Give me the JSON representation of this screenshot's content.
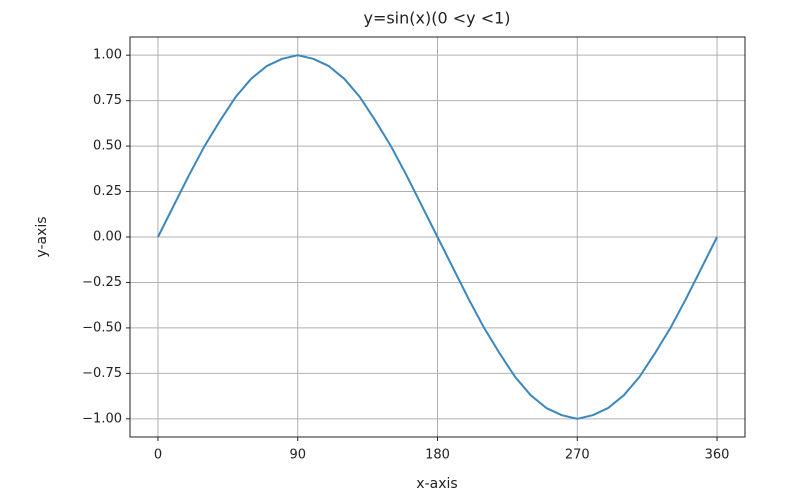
{
  "chart_data": {
    "type": "line",
    "title": "y=sin(x)(0 <y <1)",
    "x_label": "x-axis",
    "y_label": "y-axis",
    "x": [
      0,
      10,
      20,
      30,
      40,
      50,
      60,
      70,
      80,
      90,
      100,
      110,
      120,
      130,
      140,
      150,
      160,
      170,
      180,
      190,
      200,
      210,
      220,
      230,
      240,
      250,
      260,
      270,
      280,
      290,
      300,
      310,
      320,
      330,
      340,
      350,
      360
    ],
    "series": [
      {
        "name": "sin",
        "color": "#3a87c0",
        "values": [
          0,
          0.17,
          0.34,
          0.5,
          0.64,
          0.77,
          0.87,
          0.94,
          0.98,
          1,
          0.98,
          0.94,
          0.87,
          0.77,
          0.64,
          0.5,
          0.34,
          0.17,
          0,
          -0.17,
          -0.34,
          -0.5,
          -0.64,
          -0.77,
          -0.87,
          -0.94,
          -0.98,
          -1,
          -0.98,
          -0.94,
          -0.87,
          -0.77,
          -0.64,
          -0.5,
          -0.34,
          -0.17,
          0
        ]
      }
    ],
    "xlim": [
      -18,
      378
    ],
    "ylim": [
      -1.1,
      1.1
    ],
    "xticks": [
      0,
      90,
      180,
      270,
      360
    ],
    "yticks": [
      {
        "value": 1,
        "label": "1.00"
      },
      {
        "value": 0.75,
        "label": "0.75"
      },
      {
        "value": 0.5,
        "label": "0.50"
      },
      {
        "value": 0.25,
        "label": "0.25"
      },
      {
        "value": 0,
        "label": "0.00"
      },
      {
        "value": -0.25,
        "label": "−0.25"
      },
      {
        "value": -0.5,
        "label": "−0.50"
      },
      {
        "value": -0.75,
        "label": "−0.75"
      },
      {
        "value": -1,
        "label": "−1.00"
      }
    ],
    "grid": true
  }
}
